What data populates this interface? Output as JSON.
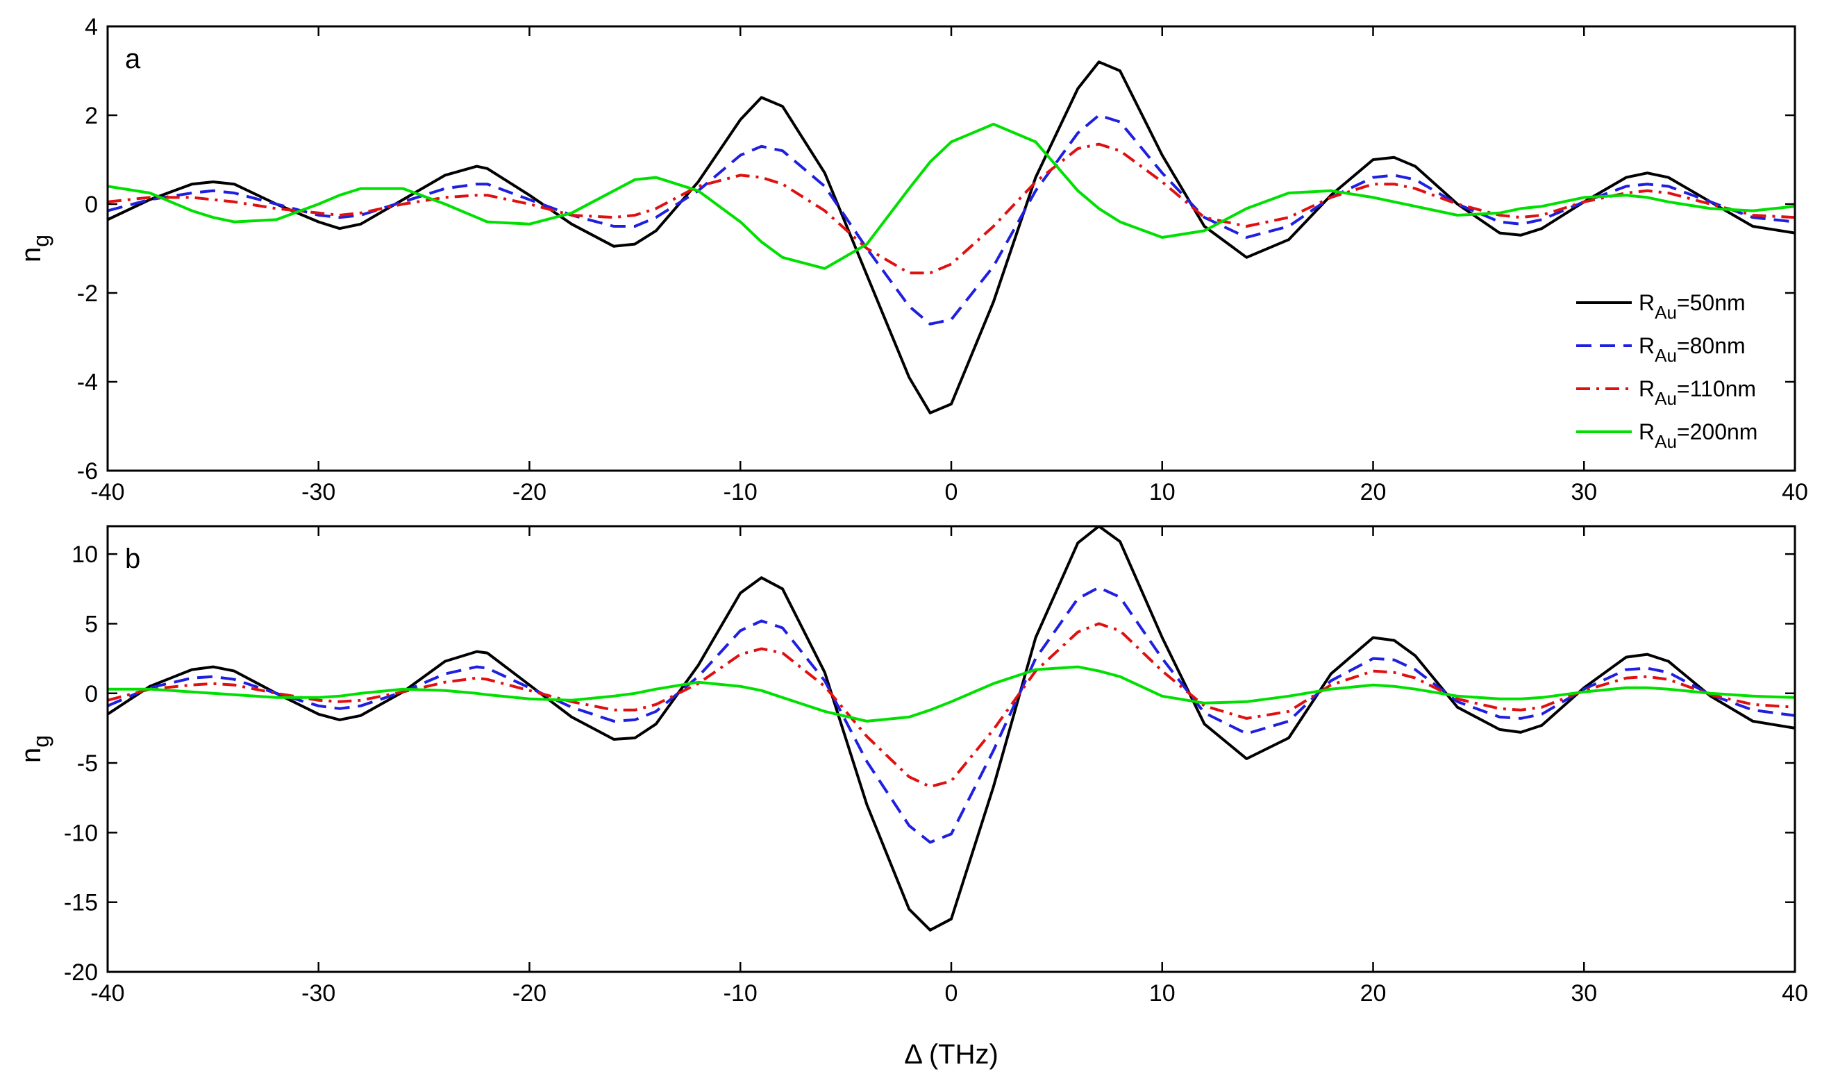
{
  "chart_data": [
    {
      "type": "line",
      "panel_label": "a",
      "xlabel": "",
      "ylabel": "n",
      "ylabel_sub": "g",
      "xlim": [
        -40,
        40
      ],
      "ylim": [
        -6,
        4
      ],
      "xticks": [
        "-40",
        "-30",
        "-20",
        "-10",
        "0",
        "10",
        "20",
        "30",
        "40"
      ],
      "yticks": [
        "-6",
        "-4",
        "-2",
        "0",
        "2",
        "4"
      ],
      "grid": false,
      "legend_position": "lower-right",
      "x": [
        -40,
        -38,
        -36,
        -35,
        -34,
        -32,
        -30,
        -29,
        -28,
        -26,
        -24,
        -22.5,
        -22,
        -20,
        -18,
        -16,
        -15,
        -14,
        -12,
        -10,
        -9,
        -8,
        -6,
        -4,
        -2,
        -1,
        0,
        2,
        4,
        6,
        7,
        8,
        10,
        12,
        14,
        16,
        18,
        20,
        21,
        22,
        24,
        26,
        27,
        28,
        30,
        32,
        33,
        34,
        36,
        38,
        40
      ],
      "series": [
        {
          "name_main": "R",
          "name_sub": "Au",
          "name_suffix": "=50nm",
          "color": "#000000",
          "dash": "solid",
          "values": [
            -0.35,
            0.1,
            0.45,
            0.5,
            0.45,
            0.0,
            -0.4,
            -0.55,
            -0.45,
            0.1,
            0.65,
            0.85,
            0.8,
            0.2,
            -0.45,
            -0.95,
            -0.9,
            -0.6,
            0.5,
            1.9,
            2.4,
            2.2,
            0.7,
            -1.6,
            -3.9,
            -4.7,
            -4.5,
            -2.2,
            0.6,
            2.6,
            3.2,
            3.0,
            1.1,
            -0.5,
            -1.2,
            -0.8,
            0.2,
            1.0,
            1.05,
            0.85,
            0.0,
            -0.65,
            -0.7,
            -0.55,
            0.05,
            0.6,
            0.7,
            0.6,
            0.05,
            -0.5,
            -0.65
          ]
        },
        {
          "name_main": "R",
          "name_sub": "Au",
          "name_suffix": "=80nm",
          "color": "#1f1fe0",
          "dash": "dashed",
          "values": [
            -0.15,
            0.1,
            0.25,
            0.3,
            0.25,
            0.0,
            -0.25,
            -0.3,
            -0.25,
            0.05,
            0.35,
            0.45,
            0.45,
            0.1,
            -0.25,
            -0.5,
            -0.5,
            -0.3,
            0.3,
            1.1,
            1.3,
            1.2,
            0.4,
            -1.0,
            -2.3,
            -2.7,
            -2.6,
            -1.4,
            0.3,
            1.6,
            2.0,
            1.85,
            0.7,
            -0.3,
            -0.75,
            -0.5,
            0.15,
            0.6,
            0.65,
            0.55,
            0.0,
            -0.4,
            -0.45,
            -0.35,
            0.05,
            0.4,
            0.45,
            0.4,
            0.05,
            -0.3,
            -0.4
          ]
        },
        {
          "name_main": "R",
          "name_sub": "Au",
          "name_suffix": "=110nm",
          "color": "#e01010",
          "dash": "dashdot",
          "values": [
            0.05,
            0.15,
            0.15,
            0.1,
            0.05,
            -0.1,
            -0.2,
            -0.25,
            -0.2,
            0.0,
            0.15,
            0.2,
            0.2,
            0.0,
            -0.25,
            -0.3,
            -0.25,
            -0.1,
            0.4,
            0.65,
            0.6,
            0.45,
            -0.15,
            -1.0,
            -1.55,
            -1.55,
            -1.35,
            -0.5,
            0.5,
            1.25,
            1.35,
            1.2,
            0.5,
            -0.3,
            -0.5,
            -0.3,
            0.15,
            0.45,
            0.45,
            0.35,
            0.0,
            -0.25,
            -0.3,
            -0.25,
            0.05,
            0.25,
            0.3,
            0.25,
            0.0,
            -0.25,
            -0.3
          ]
        },
        {
          "name_main": "R",
          "name_sub": "Au",
          "name_suffix": "=200nm",
          "color": "#00e000",
          "dash": "solid",
          "values": [
            0.4,
            0.25,
            -0.15,
            -0.3,
            -0.4,
            -0.35,
            0.0,
            0.2,
            0.35,
            0.35,
            0.0,
            -0.3,
            -0.4,
            -0.45,
            -0.2,
            0.3,
            0.55,
            0.6,
            0.3,
            -0.4,
            -0.85,
            -1.2,
            -1.45,
            -0.9,
            0.35,
            0.95,
            1.4,
            1.8,
            1.4,
            0.3,
            -0.1,
            -0.4,
            -0.75,
            -0.6,
            -0.1,
            0.25,
            0.3,
            0.15,
            0.05,
            -0.05,
            -0.25,
            -0.2,
            -0.1,
            -0.05,
            0.15,
            0.2,
            0.15,
            0.05,
            -0.1,
            -0.15,
            -0.05
          ]
        }
      ]
    },
    {
      "type": "line",
      "panel_label": "b",
      "xlabel": "Δ (THz)",
      "ylabel": "n",
      "ylabel_sub": "g",
      "xlim": [
        -40,
        40
      ],
      "ylim": [
        -20,
        12
      ],
      "xticks": [
        "-40",
        "-30",
        "-20",
        "-10",
        "0",
        "10",
        "20",
        "30",
        "40"
      ],
      "yticks": [
        "-20",
        "-15",
        "-10",
        "-5",
        "0",
        "5",
        "10"
      ],
      "grid": false,
      "x": [
        -40,
        -38,
        -36,
        -35,
        -34,
        -32,
        -30,
        -29,
        -28,
        -26,
        -24,
        -22.5,
        -22,
        -20,
        -18,
        -16,
        -15,
        -14,
        -12,
        -10,
        -9,
        -8,
        -6,
        -4,
        -2,
        -1,
        0,
        2,
        4,
        6,
        7,
        8,
        10,
        12,
        14,
        16,
        18,
        20,
        21,
        22,
        24,
        26,
        27,
        28,
        30,
        32,
        33,
        34,
        36,
        38,
        40
      ],
      "series": [
        {
          "name": "RAu=50nm",
          "color": "#000000",
          "dash": "solid",
          "values": [
            -1.5,
            0.5,
            1.7,
            1.9,
            1.6,
            0.0,
            -1.5,
            -1.9,
            -1.6,
            0.1,
            2.3,
            3.0,
            2.9,
            0.6,
            -1.7,
            -3.3,
            -3.2,
            -2.2,
            2.0,
            7.2,
            8.3,
            7.5,
            1.5,
            -8.0,
            -15.5,
            -17.0,
            -16.2,
            -6.7,
            4.0,
            10.8,
            12.0,
            10.9,
            4.0,
            -2.2,
            -4.7,
            -3.2,
            1.4,
            4.0,
            3.8,
            2.7,
            -1.0,
            -2.6,
            -2.8,
            -2.3,
            0.4,
            2.6,
            2.8,
            2.3,
            -0.2,
            -2.0,
            -2.5
          ]
        },
        {
          "name": "RAu=80nm",
          "color": "#1f1fe0",
          "dash": "dashed",
          "values": [
            -0.9,
            0.4,
            1.1,
            1.2,
            1.0,
            0.0,
            -0.9,
            -1.1,
            -0.9,
            0.1,
            1.4,
            1.9,
            1.8,
            0.4,
            -1.0,
            -2.0,
            -1.9,
            -1.3,
            1.2,
            4.5,
            5.2,
            4.7,
            0.9,
            -4.9,
            -9.5,
            -10.7,
            -10.1,
            -4.1,
            2.5,
            6.8,
            7.6,
            6.9,
            2.5,
            -1.4,
            -2.9,
            -2.0,
            0.9,
            2.5,
            2.4,
            1.7,
            -0.6,
            -1.7,
            -1.8,
            -1.5,
            0.3,
            1.7,
            1.8,
            1.5,
            -0.1,
            -1.2,
            -1.6
          ]
        },
        {
          "name": "RAu=110nm",
          "color": "#e01010",
          "dash": "dashdot",
          "values": [
            -0.5,
            0.3,
            0.6,
            0.7,
            0.6,
            0.0,
            -0.5,
            -0.6,
            -0.5,
            0.1,
            0.8,
            1.1,
            1.0,
            0.2,
            -0.6,
            -1.2,
            -1.2,
            -0.8,
            0.7,
            2.8,
            3.2,
            2.9,
            0.5,
            -3.1,
            -6.0,
            -6.7,
            -6.3,
            -2.6,
            1.6,
            4.4,
            5.0,
            4.5,
            1.6,
            -0.9,
            -1.8,
            -1.3,
            0.6,
            1.6,
            1.5,
            1.1,
            -0.4,
            -1.1,
            -1.2,
            -1.0,
            0.2,
            1.1,
            1.2,
            1.0,
            -0.1,
            -0.8,
            -1.0
          ]
        },
        {
          "name": "RAu=200nm",
          "color": "#00e000",
          "dash": "solid",
          "values": [
            0.3,
            0.3,
            0.1,
            0.0,
            -0.1,
            -0.3,
            -0.3,
            -0.2,
            0.0,
            0.3,
            0.2,
            0.0,
            -0.1,
            -0.4,
            -0.5,
            -0.2,
            0.0,
            0.3,
            0.8,
            0.5,
            0.2,
            -0.3,
            -1.3,
            -2.0,
            -1.7,
            -1.2,
            -0.6,
            0.7,
            1.7,
            1.9,
            1.6,
            1.2,
            -0.2,
            -0.7,
            -0.6,
            -0.2,
            0.3,
            0.6,
            0.5,
            0.3,
            -0.2,
            -0.4,
            -0.4,
            -0.3,
            0.1,
            0.4,
            0.4,
            0.3,
            0.0,
            -0.2,
            -0.3
          ]
        }
      ]
    }
  ]
}
